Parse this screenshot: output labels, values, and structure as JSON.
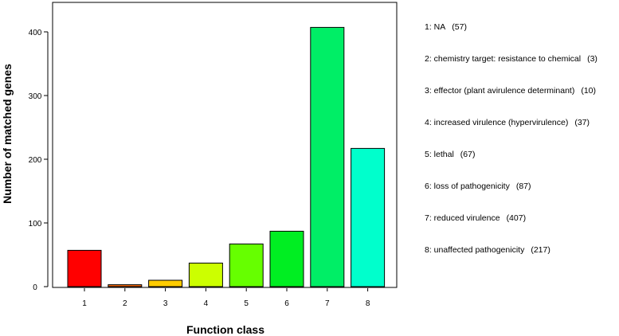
{
  "chart_data": {
    "type": "bar",
    "categories": [
      "1",
      "2",
      "3",
      "4",
      "5",
      "6",
      "7",
      "8"
    ],
    "values": [
      57,
      3,
      10,
      37,
      67,
      87,
      407,
      217
    ],
    "colors": [
      "#ff0000",
      "#ff6a00",
      "#ffcc00",
      "#ccff00",
      "#66ff00",
      "#00ee22",
      "#00ee66",
      "#00ffcc"
    ],
    "xlabel": "Function class",
    "ylabel": "Number of matched genes",
    "ylim": [
      0,
      430
    ],
    "yticks": [
      0,
      100,
      200,
      300,
      400
    ],
    "grid": false,
    "legend_position": "right",
    "legend": [
      {
        "label": "1: NA",
        "count": "(57)"
      },
      {
        "label": "2: chemistry target: resistance to chemical",
        "count": "(3)"
      },
      {
        "label": "3: effector (plant avirulence determinant)",
        "count": "(10)"
      },
      {
        "label": "4: increased virulence (hypervirulence)",
        "count": "(37)"
      },
      {
        "label": "5: lethal",
        "count": "(67)"
      },
      {
        "label": "6: loss of pathogenicity",
        "count": "(87)"
      },
      {
        "label": "7: reduced virulence",
        "count": "(407)"
      },
      {
        "label": "8: unaffected pathogenicity",
        "count": "(217)"
      }
    ]
  }
}
